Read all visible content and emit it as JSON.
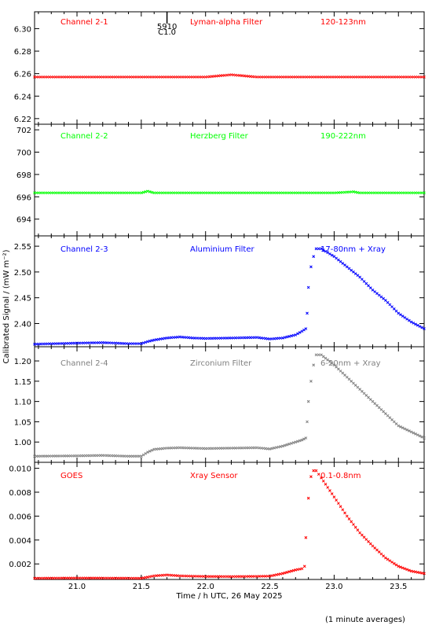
{
  "colors": {
    "red": "#ff0000",
    "green": "#00ff00",
    "blue": "#0000ff",
    "gray": "#808080",
    "axis": "#000000"
  },
  "ylabel": "Calibrated Signal / (mW m⁻²)",
  "footnote": "(1 minute averages)",
  "event_marker": {
    "x": 21.7,
    "label_top": "5910",
    "label_bottom": "C1.0"
  },
  "chart_data": [
    {
      "type": "scatter",
      "channel": "Channel 2-1",
      "filter": "Lyman-alpha Filter",
      "band": "120-123nm",
      "color": "red",
      "xlim": [
        20.67,
        23.7
      ],
      "ylim": [
        6.215,
        6.315
      ],
      "yticks": [
        "6.22",
        "6.24",
        "6.26",
        "6.28",
        "6.30"
      ],
      "xticks": [
        "21.0",
        "21.5",
        "22.0",
        "22.5",
        "23.0",
        "23.5"
      ],
      "series": [
        {
          "points": [
            [
              20.67,
              6.257
            ],
            [
              21.0,
              6.257
            ],
            [
              21.5,
              6.257
            ],
            [
              21.7,
              6.257
            ],
            [
              21.9,
              6.257
            ],
            [
              22.0,
              6.257
            ],
            [
              22.1,
              6.258
            ],
            [
              22.2,
              6.259
            ],
            [
              22.3,
              6.258
            ],
            [
              22.4,
              6.257
            ],
            [
              22.8,
              6.257
            ],
            [
              23.0,
              6.257
            ],
            [
              23.5,
              6.257
            ],
            [
              23.7,
              6.257
            ]
          ]
        }
      ]
    },
    {
      "type": "scatter",
      "channel": "Channel 2-2",
      "filter": "Herzberg Filter",
      "band": "190-222nm",
      "color": "green",
      "xlim": [
        20.67,
        23.7
      ],
      "ylim": [
        692.5,
        702.5
      ],
      "yticks": [
        "694",
        "696",
        "698",
        "700",
        "702"
      ],
      "xticks": [
        "21.0",
        "21.5",
        "22.0",
        "22.5",
        "23.0",
        "23.5"
      ],
      "series": [
        {
          "points": [
            [
              20.67,
              696.35
            ],
            [
              21.0,
              696.35
            ],
            [
              21.5,
              696.35
            ],
            [
              21.55,
              696.5
            ],
            [
              21.6,
              696.35
            ],
            [
              22.0,
              696.35
            ],
            [
              22.5,
              696.35
            ],
            [
              23.0,
              696.35
            ],
            [
              23.15,
              696.45
            ],
            [
              23.2,
              696.35
            ],
            [
              23.7,
              696.35
            ]
          ]
        }
      ]
    },
    {
      "type": "scatter",
      "channel": "Channel 2-3",
      "filter": "Aluminium Filter",
      "band": "17-80nm + Xray",
      "color": "blue",
      "xlim": [
        20.67,
        23.7
      ],
      "ylim": [
        2.355,
        2.57
      ],
      "yticks": [
        "2.40",
        "2.45",
        "2.50",
        "2.55"
      ],
      "xticks": [
        "21.0",
        "21.5",
        "22.0",
        "22.5",
        "23.0",
        "23.5"
      ],
      "series": [
        {
          "points": [
            [
              20.67,
              2.36
            ],
            [
              21.0,
              2.362
            ],
            [
              21.2,
              2.363
            ],
            [
              21.4,
              2.361
            ],
            [
              21.5,
              2.361
            ],
            [
              21.55,
              2.365
            ],
            [
              21.6,
              2.368
            ],
            [
              21.7,
              2.372
            ],
            [
              21.8,
              2.374
            ],
            [
              21.9,
              2.372
            ],
            [
              22.0,
              2.371
            ],
            [
              22.2,
              2.372
            ],
            [
              22.4,
              2.373
            ],
            [
              22.5,
              2.37
            ],
            [
              22.6,
              2.372
            ],
            [
              22.7,
              2.378
            ],
            [
              22.75,
              2.385
            ],
            [
              22.78,
              2.39
            ],
            [
              22.79,
              2.42
            ],
            [
              22.8,
              2.47
            ],
            [
              22.82,
              2.51
            ],
            [
              22.84,
              2.53
            ],
            [
              22.86,
              2.545
            ],
            [
              22.9,
              2.545
            ],
            [
              23.0,
              2.53
            ],
            [
              23.1,
              2.51
            ],
            [
              23.2,
              2.49
            ],
            [
              23.3,
              2.465
            ],
            [
              23.4,
              2.445
            ],
            [
              23.5,
              2.42
            ],
            [
              23.6,
              2.403
            ],
            [
              23.7,
              2.39
            ]
          ]
        }
      ]
    },
    {
      "type": "scatter",
      "channel": "Channel 2-4",
      "filter": "Zirconium Filter",
      "band": "6-20nm + Xray",
      "color": "gray",
      "xlim": [
        20.67,
        23.7
      ],
      "ylim": [
        0.95,
        1.235
      ],
      "yticks": [
        "1.00",
        "1.05",
        "1.10",
        "1.15",
        "1.20"
      ],
      "xticks": [
        "21.0",
        "21.5",
        "22.0",
        "22.5",
        "23.0",
        "23.5"
      ],
      "series": [
        {
          "points": [
            [
              20.67,
              0.965
            ],
            [
              21.0,
              0.966
            ],
            [
              21.2,
              0.967
            ],
            [
              21.4,
              0.965
            ],
            [
              21.5,
              0.965
            ],
            [
              21.55,
              0.975
            ],
            [
              21.6,
              0.982
            ],
            [
              21.7,
              0.985
            ],
            [
              21.8,
              0.986
            ],
            [
              22.0,
              0.984
            ],
            [
              22.2,
              0.985
            ],
            [
              22.4,
              0.986
            ],
            [
              22.5,
              0.983
            ],
            [
              22.6,
              0.99
            ],
            [
              22.7,
              1.0
            ],
            [
              22.75,
              1.005
            ],
            [
              22.78,
              1.01
            ],
            [
              22.79,
              1.05
            ],
            [
              22.8,
              1.1
            ],
            [
              22.82,
              1.15
            ],
            [
              22.84,
              1.19
            ],
            [
              22.86,
              1.215
            ],
            [
              22.9,
              1.215
            ],
            [
              23.0,
              1.19
            ],
            [
              23.1,
              1.16
            ],
            [
              23.2,
              1.13
            ],
            [
              23.3,
              1.1
            ],
            [
              23.4,
              1.07
            ],
            [
              23.5,
              1.04
            ],
            [
              23.6,
              1.025
            ],
            [
              23.7,
              1.01
            ]
          ]
        }
      ]
    },
    {
      "type": "scatter",
      "channel": "GOES",
      "filter": "Xray Sensor",
      "band": "0.1-0.8nm",
      "color": "red",
      "xlim": [
        20.67,
        23.7
      ],
      "ylim": [
        0.0007,
        0.0105
      ],
      "yticks": [
        "0.002",
        "0.004",
        "0.006",
        "0.008",
        "0.010"
      ],
      "xticks": [
        "21.0",
        "21.5",
        "22.0",
        "22.5",
        "23.0",
        "23.5"
      ],
      "xlabel": "Time / h UTC, 26 May 2025",
      "series": [
        {
          "points": [
            [
              20.67,
              0.0008
            ],
            [
              21.0,
              0.00082
            ],
            [
              21.5,
              0.0008
            ],
            [
              21.55,
              0.0009
            ],
            [
              21.6,
              0.001
            ],
            [
              21.7,
              0.00108
            ],
            [
              21.8,
              0.001
            ],
            [
              22.0,
              0.00095
            ],
            [
              22.2,
              0.00094
            ],
            [
              22.4,
              0.00096
            ],
            [
              22.5,
              0.00098
            ],
            [
              22.6,
              0.0012
            ],
            [
              22.7,
              0.0015
            ],
            [
              22.75,
              0.0016
            ],
            [
              22.77,
              0.0018
            ],
            [
              22.78,
              0.0042
            ],
            [
              22.8,
              0.0075
            ],
            [
              22.82,
              0.0093
            ],
            [
              22.84,
              0.0098
            ],
            [
              22.86,
              0.0098
            ],
            [
              22.9,
              0.0092
            ],
            [
              23.0,
              0.0076
            ],
            [
              23.1,
              0.006
            ],
            [
              23.2,
              0.0046
            ],
            [
              23.3,
              0.0035
            ],
            [
              23.4,
              0.0025
            ],
            [
              23.5,
              0.0018
            ],
            [
              23.6,
              0.0014
            ],
            [
              23.7,
              0.0012
            ]
          ]
        }
      ]
    }
  ]
}
